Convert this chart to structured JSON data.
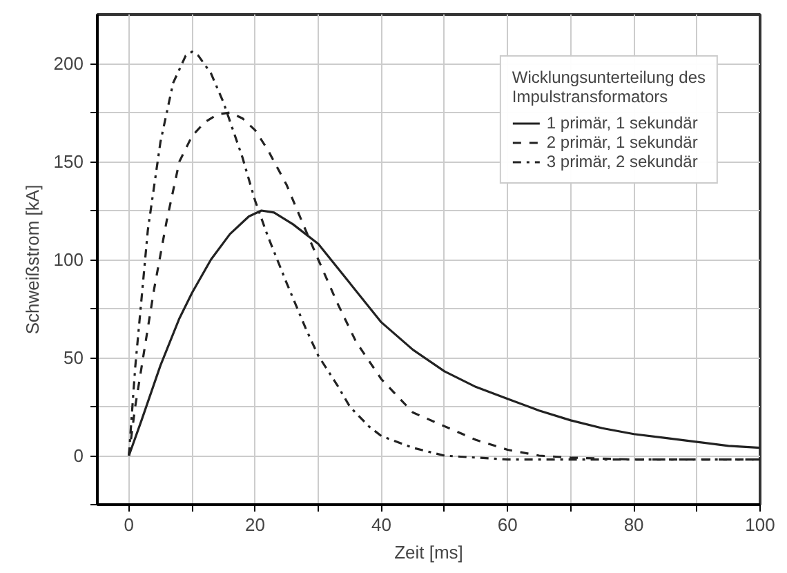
{
  "chart_data": {
    "type": "line",
    "xlabel": "Zeit [ms]",
    "ylabel": "Schweißstrom [kA]",
    "legend_title": "Wicklungsunterteilung des\nImpulstransformators",
    "legend": "top right",
    "grid": true,
    "xlim": [
      -5,
      100
    ],
    "ylim": [
      -25,
      225
    ],
    "xticks": [
      0,
      {
        "value": 10,
        "label": null
      },
      20,
      {
        "value": 30,
        "label": null
      },
      40,
      {
        "value": 50,
        "label": null
      },
      60,
      {
        "value": 70,
        "label": null
      },
      80,
      {
        "value": 90,
        "label": null
      },
      100
    ],
    "yticks": [
      {
        "value": -25,
        "label": null
      },
      0,
      {
        "value": 25,
        "label": null
      },
      50,
      {
        "value": 75,
        "label": null
      },
      100,
      {
        "value": 125,
        "label": null
      },
      150,
      {
        "value": 175,
        "label": null
      },
      200
    ],
    "series": [
      {
        "name": "1 primär, 1 sekundär",
        "color": "#222222",
        "line_style": "solid",
        "x": [
          0,
          2,
          5,
          8,
          10,
          13,
          16,
          19,
          21,
          23,
          26,
          30,
          35,
          40,
          45,
          50,
          55,
          60,
          65,
          70,
          75,
          80,
          85,
          90,
          95,
          100
        ],
        "values": [
          0,
          18,
          46,
          70,
          83,
          100,
          113,
          122,
          125,
          124,
          118,
          108,
          88,
          68,
          54,
          43,
          35,
          29,
          23,
          18,
          14,
          11,
          9,
          7,
          5,
          4
        ]
      },
      {
        "name": "2 primär, 1 sekundär",
        "color": "#222222",
        "line_style": "dashed",
        "x": [
          0,
          1,
          2,
          4,
          6,
          8,
          10,
          12,
          14,
          16,
          18,
          20,
          22,
          25,
          28,
          30,
          33,
          36,
          40,
          45,
          50,
          55,
          60,
          65,
          70,
          80,
          90,
          100
        ],
        "values": [
          0,
          25,
          45,
          85,
          120,
          150,
          163,
          170,
          174,
          175,
          172,
          166,
          156,
          138,
          115,
          100,
          78,
          58,
          39,
          22,
          15,
          8,
          3,
          0,
          -1,
          -2,
          -2,
          -2
        ]
      },
      {
        "name": "3 primär, 2 sekundär",
        "color": "#222222",
        "line_style": "dashdot",
        "x": [
          0,
          1,
          2,
          3,
          5,
          7,
          9,
          10,
          11,
          13,
          15,
          18,
          20,
          22,
          25,
          28,
          30,
          33,
          35,
          38,
          40,
          45,
          50,
          60,
          70,
          80,
          90,
          100
        ],
        "values": [
          0,
          45,
          80,
          115,
          160,
          190,
          204,
          206,
          204,
          195,
          180,
          152,
          130,
          112,
          88,
          65,
          51,
          36,
          25,
          15,
          10,
          4,
          0,
          -2,
          -2,
          -2,
          -2,
          -2
        ]
      }
    ]
  }
}
